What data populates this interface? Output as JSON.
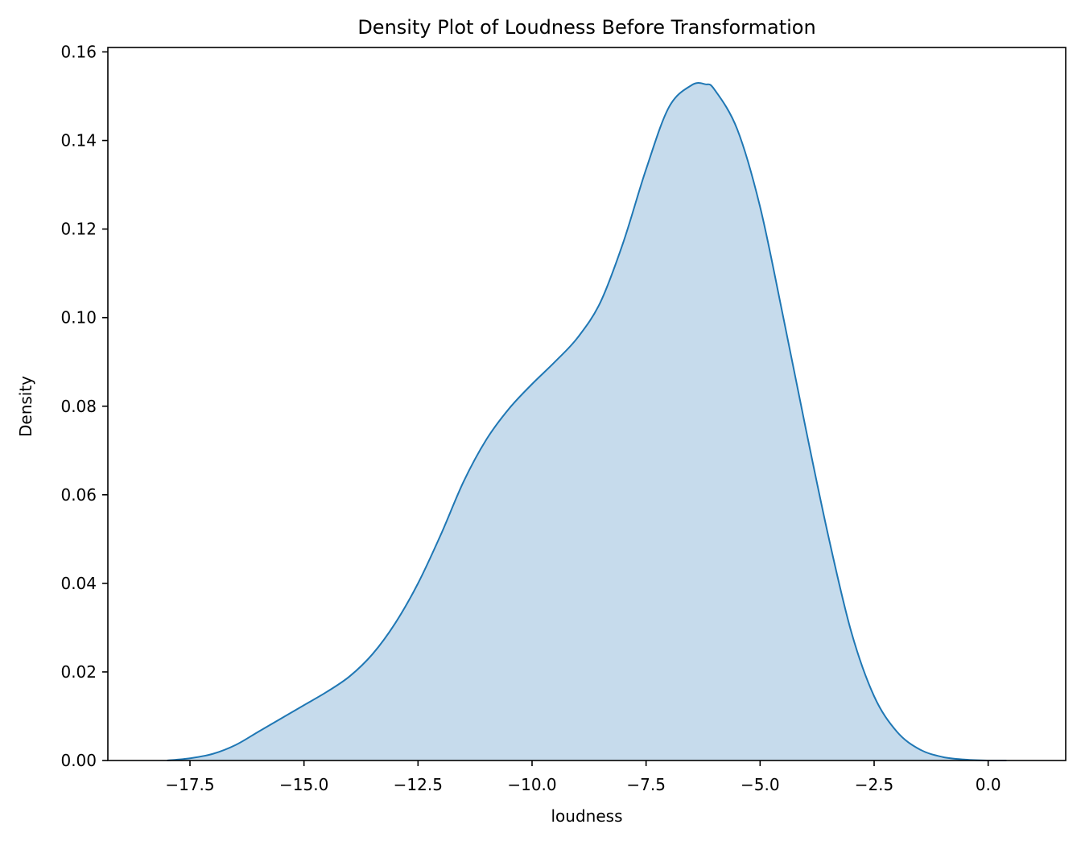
{
  "chart_data": {
    "type": "area",
    "title": "Density Plot of Loudness Before Transformation",
    "xlabel": "loudness",
    "ylabel": "Density",
    "xlim": [
      -19.3,
      1.7
    ],
    "ylim": [
      0.0,
      0.161
    ],
    "x_ticks": [
      -17.5,
      -15.0,
      -12.5,
      -10.0,
      -7.5,
      -5.0,
      -2.5,
      0.0
    ],
    "x_tick_labels": [
      "−17.5",
      "−15.0",
      "−12.5",
      "−10.0",
      "−7.5",
      "−5.0",
      "−2.5",
      "0.0"
    ],
    "y_ticks": [
      0.0,
      0.02,
      0.04,
      0.06,
      0.08,
      0.1,
      0.12,
      0.14,
      0.16
    ],
    "y_tick_labels": [
      "0.00",
      "0.02",
      "0.04",
      "0.06",
      "0.08",
      "0.10",
      "0.12",
      "0.14",
      "0.16"
    ],
    "grid": false,
    "series": [
      {
        "line_color": "#1f77b4",
        "fill_color": "#c6dbec",
        "x": [
          -18.0,
          -17.5,
          -17.0,
          -16.5,
          -16.0,
          -15.5,
          -15.0,
          -14.5,
          -14.0,
          -13.5,
          -13.0,
          -12.5,
          -12.0,
          -11.5,
          -11.0,
          -10.5,
          -10.0,
          -9.5,
          -9.0,
          -8.5,
          -8.0,
          -7.5,
          -7.0,
          -6.5,
          -6.2,
          -6.0,
          -5.5,
          -5.0,
          -4.5,
          -4.0,
          -3.5,
          -3.0,
          -2.5,
          -2.0,
          -1.5,
          -1.0,
          -0.5,
          0.0,
          0.4
        ],
        "y": [
          0.0,
          0.0005,
          0.0015,
          0.0035,
          0.0065,
          0.0095,
          0.0125,
          0.0155,
          0.019,
          0.024,
          0.031,
          0.04,
          0.051,
          0.063,
          0.0725,
          0.0795,
          0.085,
          0.09,
          0.0955,
          0.1035,
          0.117,
          0.1335,
          0.1475,
          0.1525,
          0.1527,
          0.1515,
          0.1425,
          0.125,
          0.1005,
          0.075,
          0.0505,
          0.029,
          0.0145,
          0.0065,
          0.0025,
          0.0008,
          0.0002,
          0.0,
          0.0
        ]
      }
    ]
  }
}
